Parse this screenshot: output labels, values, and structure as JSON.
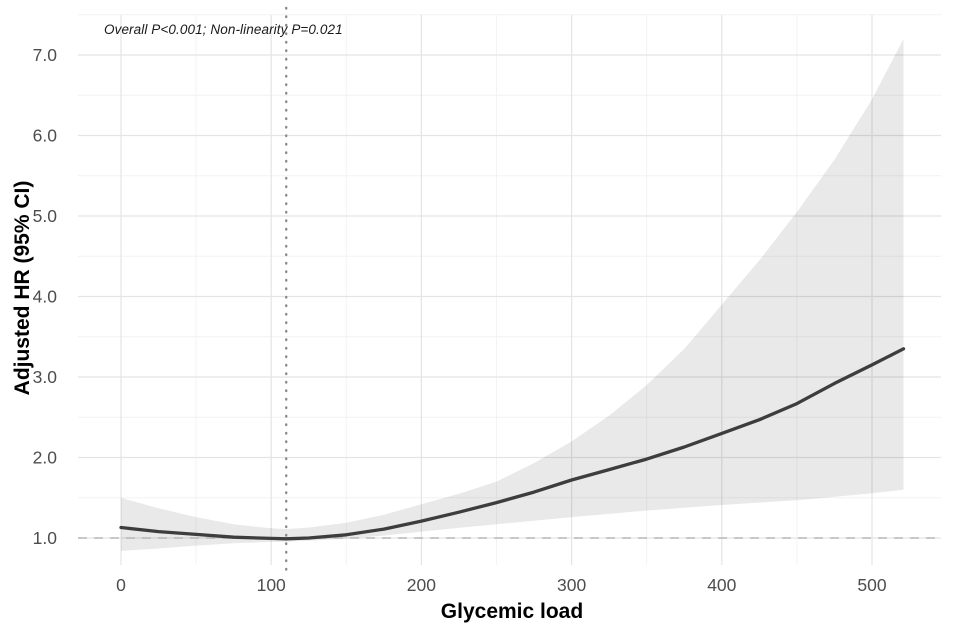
{
  "chart_data": {
    "type": "line",
    "title": "",
    "xlabel": "Glycemic load",
    "ylabel": "Adjusted HR (95% CI)",
    "annotation": "Overall P<0.001; Non-linearity P=0.021",
    "xlim": [
      -28.6,
      546.3
    ],
    "ylim": [
      0.665,
      7.5
    ],
    "grid": true,
    "legend_position": "none",
    "x_ticks": [
      0,
      100,
      200,
      300,
      400,
      500
    ],
    "x_tick_labels": [
      "0",
      "100",
      "200",
      "300",
      "400",
      "500"
    ],
    "x_minor_ticks": [
      50,
      150,
      250,
      350,
      450
    ],
    "y_ticks": [
      1,
      2,
      3,
      4,
      5,
      6,
      7
    ],
    "y_tick_labels": [
      "1.0",
      "2.0",
      "3.0",
      "4.0",
      "5.0",
      "6.0",
      "7.0"
    ],
    "y_minor_ticks": [
      1.5,
      2.5,
      3.5,
      4.5,
      5.5,
      6.5,
      7.5
    ],
    "reference_line_hr": 1.0,
    "knot_vline_x": 110,
    "x": [
      0,
      25,
      50,
      75,
      100,
      110,
      125,
      150,
      175,
      200,
      225,
      250,
      275,
      300,
      325,
      350,
      375,
      400,
      425,
      450,
      475,
      500,
      521
    ],
    "series": [
      {
        "name": "adjusted_hr",
        "values": [
          1.13,
          1.08,
          1.045,
          1.01,
          0.995,
          0.99,
          1.0,
          1.04,
          1.11,
          1.21,
          1.32,
          1.44,
          1.57,
          1.72,
          1.85,
          1.98,
          2.13,
          2.3,
          2.47,
          2.67,
          2.92,
          3.15,
          3.35
        ]
      },
      {
        "name": "upper_95ci",
        "values": [
          1.5,
          1.37,
          1.26,
          1.17,
          1.12,
          1.11,
          1.13,
          1.19,
          1.29,
          1.42,
          1.55,
          1.7,
          1.93,
          2.2,
          2.52,
          2.9,
          3.35,
          3.9,
          4.45,
          5.05,
          5.7,
          6.45,
          7.2
        ]
      },
      {
        "name": "lower_95ci",
        "values": [
          0.84,
          0.87,
          0.905,
          0.935,
          0.95,
          0.955,
          0.965,
          0.99,
          1.03,
          1.08,
          1.125,
          1.17,
          1.215,
          1.26,
          1.3,
          1.34,
          1.375,
          1.41,
          1.44,
          1.47,
          1.51,
          1.555,
          1.6
        ]
      }
    ],
    "colors": {
      "background": "#ffffff",
      "curve": "#3d3d3d",
      "band_fill": "rgba(0,0,0,0.085)",
      "grid_major": "#e4e4e4",
      "grid_minor": "#f2f2f2",
      "dashed_reference": "#b8b8b8",
      "dotted_vline": "#8a8a8a",
      "tick_text": "#4d4d4d",
      "axis_title_text": "#000000",
      "annotation_text": "#1a1a1a"
    }
  }
}
